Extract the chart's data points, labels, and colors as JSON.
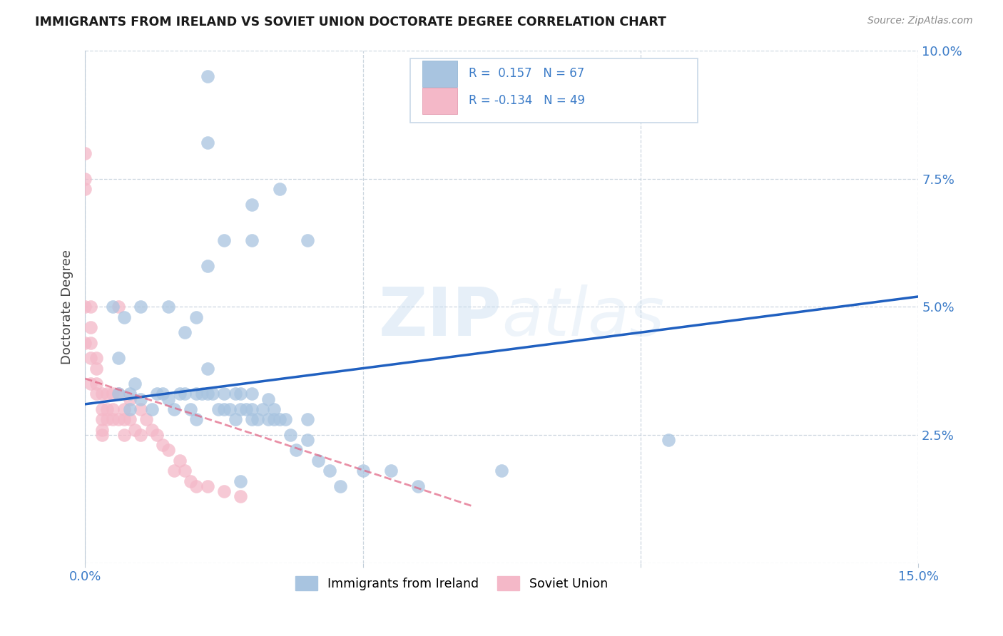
{
  "title": "IMMIGRANTS FROM IRELAND VS SOVIET UNION DOCTORATE DEGREE CORRELATION CHART",
  "source": "Source: ZipAtlas.com",
  "ylabel": "Doctorate Degree",
  "xlim": [
    0.0,
    0.15
  ],
  "ylim": [
    0.0,
    0.1
  ],
  "ireland_color": "#a8c4e0",
  "soviet_color": "#f4b8c8",
  "ireland_line_color": "#2060c0",
  "soviet_line_color": "#e06080",
  "watermark": "ZIPatlas",
  "ireland_x": [
    0.022,
    0.022,
    0.022,
    0.03,
    0.035,
    0.04,
    0.015,
    0.02,
    0.025,
    0.03,
    0.005,
    0.006,
    0.006,
    0.007,
    0.008,
    0.008,
    0.009,
    0.01,
    0.01,
    0.012,
    0.013,
    0.014,
    0.015,
    0.016,
    0.017,
    0.018,
    0.018,
    0.019,
    0.02,
    0.02,
    0.021,
    0.022,
    0.022,
    0.023,
    0.024,
    0.025,
    0.025,
    0.026,
    0.027,
    0.027,
    0.028,
    0.028,
    0.029,
    0.03,
    0.03,
    0.03,
    0.031,
    0.032,
    0.033,
    0.033,
    0.034,
    0.034,
    0.035,
    0.036,
    0.037,
    0.038,
    0.04,
    0.04,
    0.042,
    0.044,
    0.046,
    0.05,
    0.055,
    0.06,
    0.075,
    0.105,
    0.028
  ],
  "ireland_y": [
    0.095,
    0.082,
    0.058,
    0.07,
    0.073,
    0.063,
    0.05,
    0.048,
    0.063,
    0.063,
    0.05,
    0.04,
    0.033,
    0.048,
    0.033,
    0.03,
    0.035,
    0.032,
    0.05,
    0.03,
    0.033,
    0.033,
    0.032,
    0.03,
    0.033,
    0.045,
    0.033,
    0.03,
    0.033,
    0.028,
    0.033,
    0.038,
    0.033,
    0.033,
    0.03,
    0.033,
    0.03,
    0.03,
    0.033,
    0.028,
    0.033,
    0.03,
    0.03,
    0.033,
    0.03,
    0.028,
    0.028,
    0.03,
    0.032,
    0.028,
    0.028,
    0.03,
    0.028,
    0.028,
    0.025,
    0.022,
    0.028,
    0.024,
    0.02,
    0.018,
    0.015,
    0.018,
    0.018,
    0.015,
    0.018,
    0.024,
    0.016
  ],
  "soviet_x": [
    0.0,
    0.0,
    0.0,
    0.0,
    0.0,
    0.001,
    0.001,
    0.001,
    0.001,
    0.001,
    0.002,
    0.002,
    0.002,
    0.002,
    0.003,
    0.003,
    0.003,
    0.003,
    0.003,
    0.004,
    0.004,
    0.004,
    0.005,
    0.005,
    0.005,
    0.006,
    0.006,
    0.006,
    0.007,
    0.007,
    0.007,
    0.008,
    0.008,
    0.009,
    0.01,
    0.01,
    0.011,
    0.012,
    0.013,
    0.014,
    0.015,
    0.016,
    0.017,
    0.018,
    0.019,
    0.02,
    0.022,
    0.025,
    0.028
  ],
  "soviet_y": [
    0.08,
    0.075,
    0.073,
    0.05,
    0.043,
    0.05,
    0.046,
    0.043,
    0.04,
    0.035,
    0.04,
    0.038,
    0.035,
    0.033,
    0.033,
    0.03,
    0.028,
    0.026,
    0.025,
    0.033,
    0.03,
    0.028,
    0.033,
    0.03,
    0.028,
    0.033,
    0.05,
    0.028,
    0.03,
    0.028,
    0.025,
    0.032,
    0.028,
    0.026,
    0.03,
    0.025,
    0.028,
    0.026,
    0.025,
    0.023,
    0.022,
    0.018,
    0.02,
    0.018,
    0.016,
    0.015,
    0.015,
    0.014,
    0.013
  ],
  "ireland_line_x": [
    0.0,
    0.15
  ],
  "ireland_line_y": [
    0.031,
    0.052
  ],
  "soviet_line_x": [
    0.0,
    0.07
  ],
  "soviet_line_y": [
    0.036,
    0.011
  ]
}
